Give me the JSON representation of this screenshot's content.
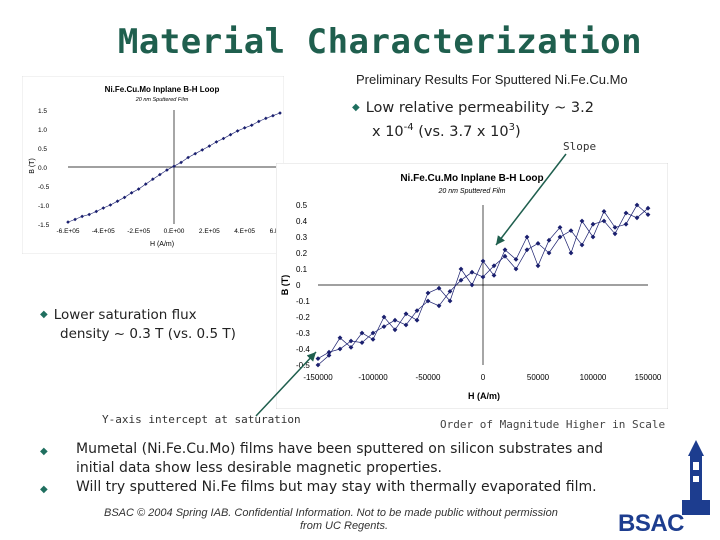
{
  "slide": {
    "title": "Material Characterization",
    "subtitle": "Preliminary Results For Sputtered Ni.Fe.Cu.Mo",
    "bullet_top": "Low relative permeability ~ 3.2 x 10-4 (vs. 3.7 x 103)",
    "bullet_top_line1": "Low relative permeability ~ 3.2",
    "bullet_top_line2_prefix": "x 10",
    "bullet_top_exp1": "-4",
    "bullet_top_line2_mid": " (vs. 3.7 x 10",
    "bullet_top_exp2": "3",
    "bullet_top_line2_suffix": ")",
    "bullet_mid_line1": "Lower saturation flux",
    "bullet_mid_line2": "density ~ 0.3 T (vs. 0.5 T)",
    "slope_label": "Slope",
    "y_intercept_label": "Y-axis intercept at saturation",
    "order_label": "Order of Magnitude Higher in Scale",
    "bottom_bullet_1": "Mumetal (Ni.Fe.Cu.Mo) films have been sputtered on silicon substrates and initial data show less desirable magnetic properties.",
    "bottom_bullet_2": "Will try sputtered Ni.Fe films but may stay with thermally evaporated film.",
    "footer_line1": "BSAC © 2004 Spring IAB. Confidential Information. Not to be made public without permission",
    "footer_line2": "from UC Regents.",
    "logo": "BSAC",
    "colors": {
      "title": "#1f5f4e",
      "bullet": "#1f6f5f",
      "series": "#1a1f6e",
      "logo": "#1d3d8f"
    },
    "icons": {
      "bullet": "diamond-bullet-icon",
      "tower": "campanile-tower-icon"
    }
  },
  "chart_data": [
    {
      "type": "line",
      "title": "Ni.Fe.Cu.Mo Inplane B-H Loop",
      "subtitle": "20 nm Sputtered Film",
      "xlabel": "H (A/m)",
      "ylabel": "B (T)",
      "x_tick_labels": [
        "-6.E+05",
        "-4.E+05",
        "-2.E+05",
        "0.E+00",
        "2.E+05",
        "4.E+05",
        "6.E+05"
      ],
      "y_tick_labels": [
        "1.5",
        "1.0",
        "0.5",
        "0.0",
        "-0.5",
        "-1.0",
        "-1.5"
      ],
      "xlim": [
        -600000,
        600000
      ],
      "ylim": [
        -1.5,
        1.5
      ],
      "series": [
        {
          "x": [
            -600000,
            -560000,
            -520000,
            -480000,
            -440000,
            -400000,
            -360000,
            -320000,
            -280000,
            -240000,
            -200000,
            -160000,
            -120000,
            -80000,
            -40000,
            0,
            40000,
            80000,
            120000,
            160000,
            200000,
            240000,
            280000,
            320000,
            360000,
            400000,
            440000,
            480000,
            520000,
            560000,
            600000
          ],
          "y": [
            -1.45,
            -1.38,
            -1.3,
            -1.25,
            -1.17,
            -1.08,
            -1.0,
            -0.9,
            -0.8,
            -0.68,
            -0.58,
            -0.45,
            -0.32,
            -0.2,
            -0.08,
            0.02,
            0.12,
            0.25,
            0.35,
            0.45,
            0.55,
            0.66,
            0.75,
            0.85,
            0.95,
            1.03,
            1.1,
            1.2,
            1.28,
            1.35,
            1.42
          ]
        }
      ]
    },
    {
      "type": "line",
      "title": "Ni.Fe.Cu.Mo Inplane B-H Loop",
      "subtitle": "20 nm Sputtered Film",
      "xlabel": "H (A/m)",
      "ylabel": "B (T)",
      "x_tick_labels": [
        "-150000",
        "-100000",
        "-50000",
        "0",
        "50000",
        "100000",
        "150000"
      ],
      "y_tick_labels": [
        "0.5",
        "0.4",
        "0.3",
        "0.2",
        "0.1",
        "0",
        "-0.1",
        "-0.2",
        "-0.3",
        "-0.4",
        "-0.5"
      ],
      "xlim": [
        -150000,
        150000
      ],
      "ylim": [
        -0.5,
        0.5
      ],
      "series": [
        {
          "x": [
            -150000,
            -140000,
            -130000,
            -120000,
            -110000,
            -100000,
            -90000,
            -80000,
            -70000,
            -60000,
            -50000,
            -40000,
            -30000,
            -20000,
            -10000,
            0,
            10000,
            20000,
            30000,
            40000,
            50000,
            60000,
            70000,
            80000,
            90000,
            100000,
            110000,
            120000,
            130000,
            140000,
            150000
          ],
          "y": [
            -0.46,
            -0.42,
            -0.4,
            -0.35,
            -0.36,
            -0.3,
            -0.26,
            -0.22,
            -0.25,
            -0.16,
            -0.1,
            -0.13,
            -0.04,
            0.03,
            0.08,
            0.05,
            0.12,
            0.18,
            0.1,
            0.22,
            0.26,
            0.2,
            0.3,
            0.34,
            0.25,
            0.38,
            0.4,
            0.32,
            0.45,
            0.42,
            0.48
          ]
        },
        {
          "x": [
            -150000,
            -140000,
            -130000,
            -120000,
            -110000,
            -100000,
            -90000,
            -80000,
            -70000,
            -60000,
            -50000,
            -40000,
            -30000,
            -20000,
            -10000,
            0,
            10000,
            20000,
            30000,
            40000,
            50000,
            60000,
            70000,
            80000,
            90000,
            100000,
            110000,
            120000,
            130000,
            140000,
            150000
          ],
          "y": [
            -0.5,
            -0.44,
            -0.33,
            -0.39,
            -0.3,
            -0.34,
            -0.2,
            -0.28,
            -0.18,
            -0.22,
            -0.05,
            -0.02,
            -0.1,
            0.1,
            0.0,
            0.15,
            0.06,
            0.22,
            0.16,
            0.3,
            0.12,
            0.28,
            0.36,
            0.2,
            0.4,
            0.3,
            0.46,
            0.36,
            0.38,
            0.5,
            0.44
          ]
        }
      ]
    }
  ]
}
